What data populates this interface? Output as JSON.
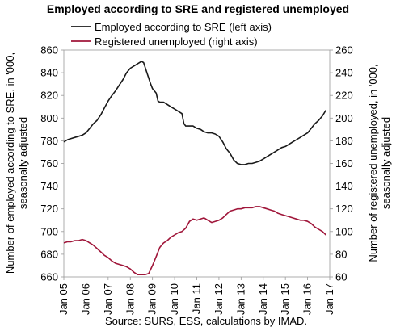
{
  "chart_data": {
    "type": "line",
    "title": "Employed according to SRE and registered unemployed",
    "source": "Source: SURS, ESS, calculations by IMAD.",
    "legend_position": "top",
    "grid": false,
    "x_ticks": [
      "Jan 05",
      "Jan 06",
      "Jan 07",
      "Jan 08",
      "Jan 09",
      "Jan 10",
      "Jan 11",
      "Jan 12",
      "Jan 13",
      "Jan 14",
      "Jan 15",
      "Jan 16",
      "Jan 17"
    ],
    "x_range": [
      2005.0,
      2017.0
    ],
    "y_left": {
      "label_line1": "Number of employed according to SRE, in '000,",
      "label_line2": "seasonally adjusted",
      "range": [
        660,
        860
      ],
      "ticks": [
        660,
        680,
        700,
        720,
        740,
        760,
        780,
        800,
        820,
        840,
        860
      ]
    },
    "y_right": {
      "label_line1": "Number of registered unemployed, in '000,",
      "label_line2": "seasonally adjusted",
      "range": [
        60,
        260
      ],
      "ticks": [
        60,
        80,
        100,
        120,
        140,
        160,
        180,
        200,
        220,
        240,
        260
      ]
    },
    "series": [
      {
        "name": "Employed according to SRE (left axis)",
        "axis": "left",
        "color": "#1a1a1a",
        "points": [
          [
            2005.0,
            779
          ],
          [
            2005.17,
            781
          ],
          [
            2005.33,
            782
          ],
          [
            2005.5,
            783
          ],
          [
            2005.67,
            784
          ],
          [
            2005.83,
            785
          ],
          [
            2006.0,
            787
          ],
          [
            2006.17,
            791
          ],
          [
            2006.33,
            795
          ],
          [
            2006.5,
            798
          ],
          [
            2006.67,
            803
          ],
          [
            2006.83,
            809
          ],
          [
            2007.0,
            815
          ],
          [
            2007.17,
            820
          ],
          [
            2007.33,
            824
          ],
          [
            2007.5,
            829
          ],
          [
            2007.67,
            834
          ],
          [
            2007.83,
            840
          ],
          [
            2008.0,
            844
          ],
          [
            2008.17,
            846
          ],
          [
            2008.33,
            848
          ],
          [
            2008.5,
            850
          ],
          [
            2008.6,
            849
          ],
          [
            2008.75,
            840
          ],
          [
            2008.92,
            830
          ],
          [
            2009.0,
            826
          ],
          [
            2009.17,
            822
          ],
          [
            2009.25,
            815
          ],
          [
            2009.33,
            814
          ],
          [
            2009.5,
            814
          ],
          [
            2009.67,
            812
          ],
          [
            2009.83,
            810
          ],
          [
            2010.0,
            808
          ],
          [
            2010.17,
            806
          ],
          [
            2010.33,
            804
          ],
          [
            2010.42,
            795
          ],
          [
            2010.5,
            793
          ],
          [
            2010.67,
            793
          ],
          [
            2010.83,
            793
          ],
          [
            2011.0,
            791
          ],
          [
            2011.17,
            790
          ],
          [
            2011.33,
            788
          ],
          [
            2011.5,
            787
          ],
          [
            2011.67,
            787
          ],
          [
            2011.83,
            786
          ],
          [
            2012.0,
            784
          ],
          [
            2012.17,
            779
          ],
          [
            2012.33,
            773
          ],
          [
            2012.5,
            769
          ],
          [
            2012.67,
            763
          ],
          [
            2012.83,
            760
          ],
          [
            2013.0,
            759
          ],
          [
            2013.17,
            759
          ],
          [
            2013.33,
            760
          ],
          [
            2013.5,
            760
          ],
          [
            2013.67,
            761
          ],
          [
            2013.83,
            762
          ],
          [
            2014.0,
            764
          ],
          [
            2014.17,
            766
          ],
          [
            2014.33,
            768
          ],
          [
            2014.5,
            770
          ],
          [
            2014.67,
            772
          ],
          [
            2014.83,
            774
          ],
          [
            2015.0,
            775
          ],
          [
            2015.17,
            777
          ],
          [
            2015.33,
            779
          ],
          [
            2015.5,
            781
          ],
          [
            2015.67,
            783
          ],
          [
            2015.83,
            785
          ],
          [
            2016.0,
            787
          ],
          [
            2016.17,
            791
          ],
          [
            2016.33,
            795
          ],
          [
            2016.5,
            798
          ],
          [
            2016.67,
            802
          ],
          [
            2016.83,
            807
          ]
        ]
      },
      {
        "name": "Registered unemployed (right axis)",
        "axis": "right",
        "color": "#a0163a",
        "points": [
          [
            2005.0,
            90
          ],
          [
            2005.17,
            91
          ],
          [
            2005.33,
            91
          ],
          [
            2005.5,
            92
          ],
          [
            2005.67,
            92
          ],
          [
            2005.83,
            93
          ],
          [
            2006.0,
            92
          ],
          [
            2006.17,
            90
          ],
          [
            2006.33,
            88
          ],
          [
            2006.5,
            85
          ],
          [
            2006.67,
            82
          ],
          [
            2006.83,
            79
          ],
          [
            2007.0,
            77
          ],
          [
            2007.17,
            74
          ],
          [
            2007.33,
            72
          ],
          [
            2007.5,
            71
          ],
          [
            2007.67,
            70
          ],
          [
            2007.83,
            69
          ],
          [
            2008.0,
            67
          ],
          [
            2008.17,
            64
          ],
          [
            2008.33,
            62
          ],
          [
            2008.5,
            62
          ],
          [
            2008.67,
            62
          ],
          [
            2008.83,
            63
          ],
          [
            2009.0,
            70
          ],
          [
            2009.17,
            78
          ],
          [
            2009.33,
            86
          ],
          [
            2009.5,
            90
          ],
          [
            2009.67,
            92
          ],
          [
            2009.83,
            95
          ],
          [
            2010.0,
            97
          ],
          [
            2010.17,
            99
          ],
          [
            2010.33,
            100
          ],
          [
            2010.5,
            103
          ],
          [
            2010.67,
            109
          ],
          [
            2010.83,
            111
          ],
          [
            2011.0,
            110
          ],
          [
            2011.17,
            111
          ],
          [
            2011.33,
            112
          ],
          [
            2011.5,
            110
          ],
          [
            2011.67,
            108
          ],
          [
            2011.83,
            109
          ],
          [
            2012.0,
            110
          ],
          [
            2012.17,
            112
          ],
          [
            2012.33,
            115
          ],
          [
            2012.5,
            118
          ],
          [
            2012.67,
            119
          ],
          [
            2012.83,
            120
          ],
          [
            2013.0,
            120
          ],
          [
            2013.17,
            121
          ],
          [
            2013.33,
            121
          ],
          [
            2013.5,
            121
          ],
          [
            2013.67,
            122
          ],
          [
            2013.83,
            122
          ],
          [
            2014.0,
            121
          ],
          [
            2014.17,
            120
          ],
          [
            2014.33,
            119
          ],
          [
            2014.5,
            118
          ],
          [
            2014.67,
            116
          ],
          [
            2014.83,
            115
          ],
          [
            2015.0,
            114
          ],
          [
            2015.17,
            113
          ],
          [
            2015.33,
            112
          ],
          [
            2015.5,
            111
          ],
          [
            2015.67,
            110
          ],
          [
            2015.83,
            110
          ],
          [
            2016.0,
            109
          ],
          [
            2016.17,
            107
          ],
          [
            2016.33,
            104
          ],
          [
            2016.5,
            102
          ],
          [
            2016.67,
            100
          ],
          [
            2016.83,
            97
          ]
        ]
      }
    ]
  }
}
